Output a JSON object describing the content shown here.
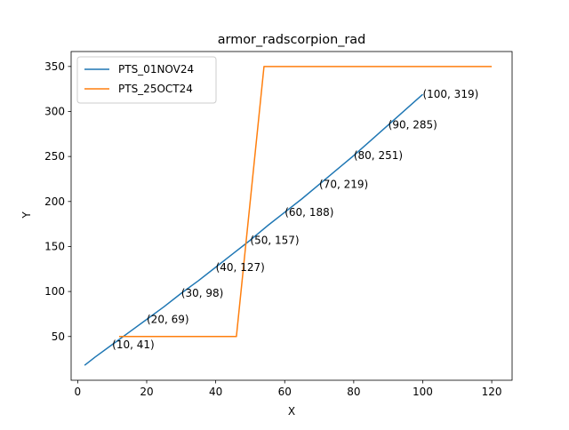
{
  "chart_data": {
    "type": "line",
    "title": "armor_radscorpion_rad",
    "xlabel": "X",
    "ylabel": "Y",
    "xlim": [
      -1.9,
      125.9
    ],
    "ylim": [
      1.4,
      366.6
    ],
    "x_ticks": [
      0,
      20,
      40,
      60,
      80,
      100,
      120
    ],
    "y_ticks": [
      50,
      100,
      150,
      200,
      250,
      300,
      350
    ],
    "grid": false,
    "legend_position": "top-left",
    "series": [
      {
        "name": "PTS_01NOV24",
        "color": "#1f77b4",
        "x": [
          2,
          5,
          10,
          15,
          20,
          25,
          30,
          35,
          40,
          45,
          50,
          55,
          60,
          65,
          70,
          75,
          80,
          85,
          90,
          95,
          100
        ],
        "y": [
          18,
          27,
          41,
          55,
          69,
          83,
          98,
          112,
          127,
          142,
          157,
          173,
          188,
          203,
          219,
          235,
          251,
          268,
          285,
          302,
          319
        ]
      },
      {
        "name": "PTS_25OCT24",
        "color": "#ff7f0e",
        "x": [
          12,
          46,
          54,
          120
        ],
        "y": [
          50,
          50,
          350,
          350
        ]
      }
    ],
    "annotations": [
      {
        "x": 10,
        "y": 41,
        "text": "(10, 41)"
      },
      {
        "x": 20,
        "y": 69,
        "text": "(20, 69)"
      },
      {
        "x": 30,
        "y": 98,
        "text": "(30, 98)"
      },
      {
        "x": 40,
        "y": 127,
        "text": "(40, 127)"
      },
      {
        "x": 50,
        "y": 157,
        "text": "(50, 157)"
      },
      {
        "x": 60,
        "y": 188,
        "text": "(60, 188)"
      },
      {
        "x": 70,
        "y": 219,
        "text": "(70, 219)"
      },
      {
        "x": 80,
        "y": 251,
        "text": "(80, 251)"
      },
      {
        "x": 90,
        "y": 285,
        "text": "(90, 285)"
      },
      {
        "x": 100,
        "y": 319,
        "text": "(100, 319)"
      }
    ]
  }
}
